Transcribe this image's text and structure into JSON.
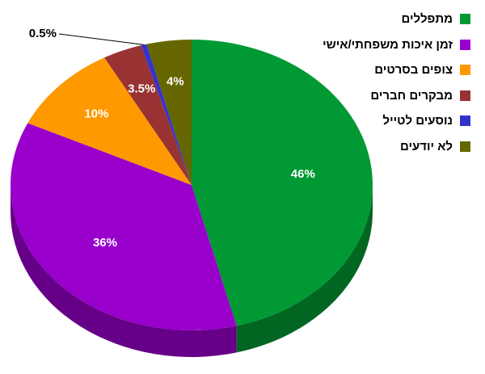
{
  "chart_data": {
    "type": "pie",
    "style": "3d",
    "legend_position": "right",
    "slices": [
      {
        "label": "מתפללים",
        "value": 46,
        "value_label": "46%",
        "color": "#009933",
        "side_color": "#006622"
      },
      {
        "label": "זמן איכות משפחתי/אישי",
        "value": 36,
        "value_label": "36%",
        "color": "#9900cc",
        "side_color": "#660088"
      },
      {
        "label": "צופים בסרטים",
        "value": 10,
        "value_label": "10%",
        "color": "#ff9900",
        "side_color": "#b36b00"
      },
      {
        "label": "מבקרים חברים",
        "value": 3.5,
        "value_label": "3.5%",
        "color": "#993333",
        "side_color": "#6b2323"
      },
      {
        "label": "נוסעים לטייל",
        "value": 0.5,
        "value_label": "0.5%",
        "color": "#3333cc",
        "side_color": "#22228f"
      },
      {
        "label": "לא יודעים",
        "value": 4,
        "value_label": "4%",
        "color": "#666600",
        "side_color": "#474700"
      }
    ]
  }
}
